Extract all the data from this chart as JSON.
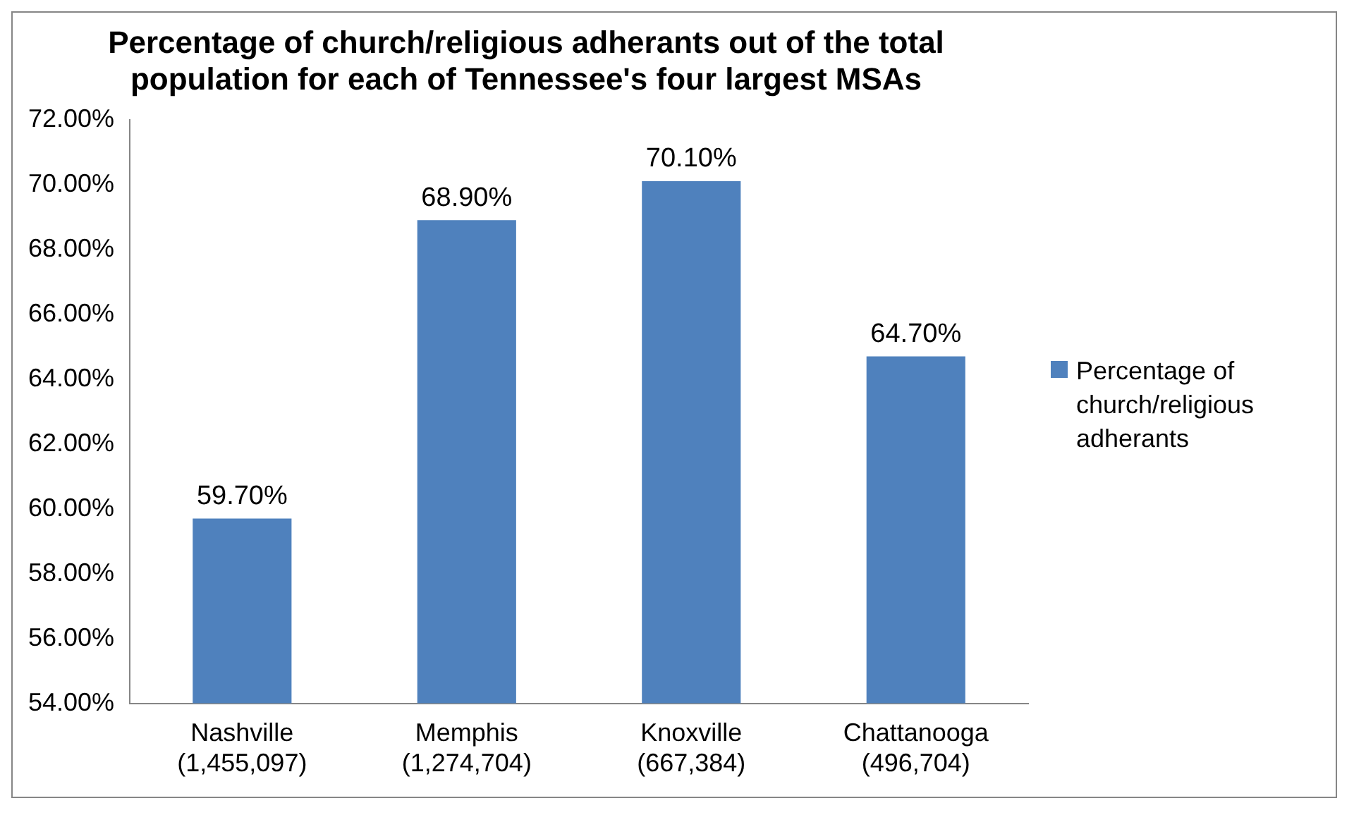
{
  "chart_data": {
    "type": "bar",
    "title": "Percentage of church/religious adherants out of the total\npopulation for each of Tennessee's four largest MSAs",
    "categories": [
      "Nashville\n(1,455,097)",
      "Memphis\n(1,274,704)",
      "Knoxville\n(667,384)",
      "Chattanooga\n(496,704)"
    ],
    "series": [
      {
        "name": "Percentage of church/religious adherants",
        "color": "#4f81bd",
        "values": [
          59.7,
          68.9,
          70.1,
          64.7
        ],
        "value_labels": [
          "59.70%",
          "68.90%",
          "70.10%",
          "64.70%"
        ]
      }
    ],
    "ylim": [
      54,
      72
    ],
    "yticks": [
      {
        "value": 54,
        "label": "54.00%"
      },
      {
        "value": 56,
        "label": "56.00%"
      },
      {
        "value": 58,
        "label": "58.00%"
      },
      {
        "value": 60,
        "label": "60.00%"
      },
      {
        "value": 62,
        "label": "62.00%"
      },
      {
        "value": 64,
        "label": "64.00%"
      },
      {
        "value": 66,
        "label": "66.00%"
      },
      {
        "value": 68,
        "label": "68.00%"
      },
      {
        "value": 70,
        "label": "70.00%"
      },
      {
        "value": 72,
        "label": "72.00%"
      }
    ],
    "grid": false,
    "legend": "right"
  }
}
